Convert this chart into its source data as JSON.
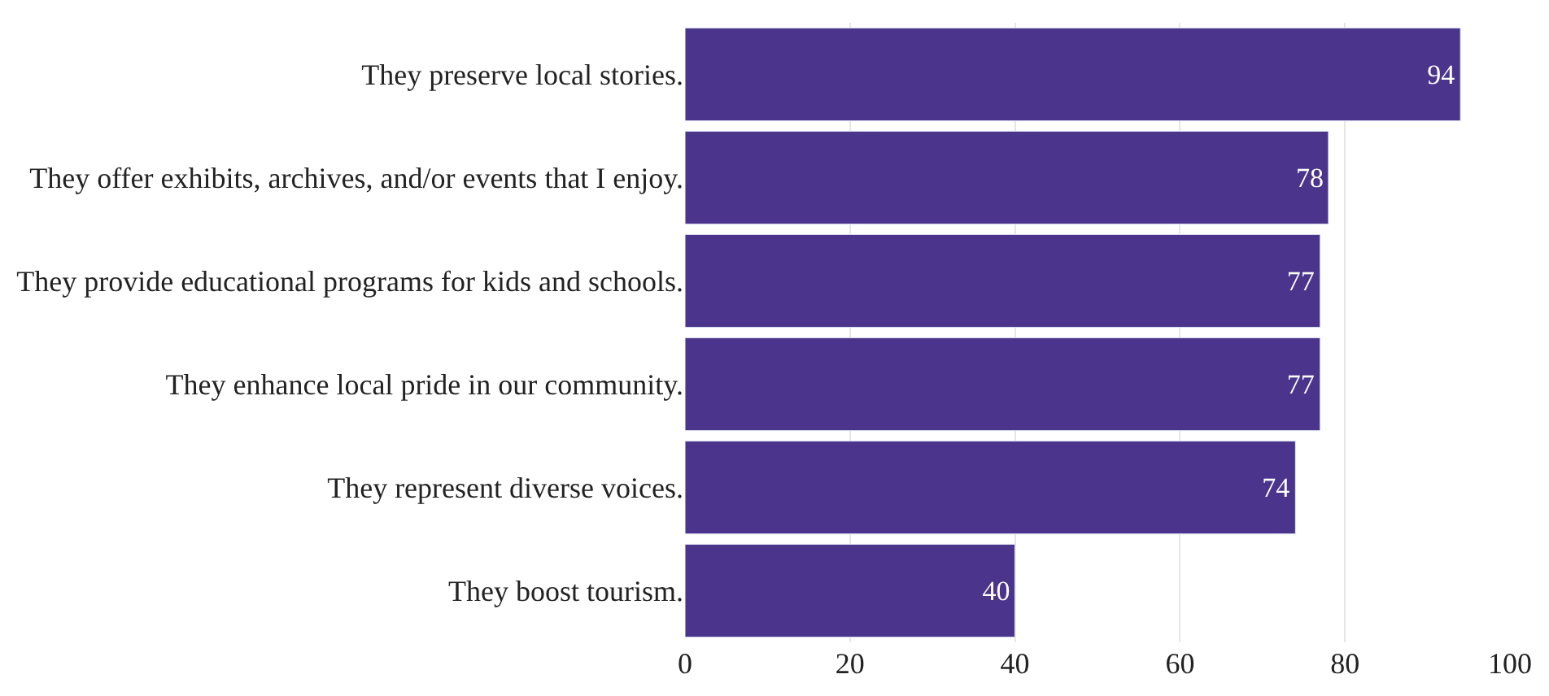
{
  "chart_data": {
    "type": "bar",
    "orientation": "horizontal",
    "categories": [
      "They preserve local stories.",
      "They offer exhibits, archives, and/or events that I enjoy.",
      "They provide educational programs for kids and schools.",
      "They enhance local pride in our community.",
      "They represent diverse voices.",
      "They boost tourism."
    ],
    "values": [
      94,
      78,
      77,
      77,
      74,
      40
    ],
    "color": "#4b358c",
    "xlim": [
      0,
      100
    ],
    "xticks": [
      0,
      20,
      40,
      60,
      80,
      100
    ],
    "grid": "x",
    "data_labels": true,
    "legend": false
  }
}
